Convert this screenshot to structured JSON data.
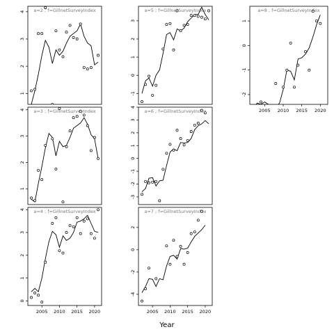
{
  "chart_data": {
    "type": "scatter",
    "xlabel": "Year",
    "xlim": [
      2001,
      2022
    ],
    "xticks": [
      2005,
      2010,
      2015,
      2020
    ],
    "panels": [
      {
        "title": "a=2 ; f=GillnetSurveyIndex",
        "ylim": [
          0.6,
          4.2
        ],
        "yticks": [
          1,
          2,
          3,
          4
        ],
        "points": [
          [
            2002,
            1.1
          ],
          [
            2003,
            1.15
          ],
          [
            2004,
            3.2
          ],
          [
            2005,
            3.2
          ],
          [
            2006,
            4.15
          ],
          [
            2008,
            0.6
          ],
          [
            2009,
            3.3
          ],
          [
            2010,
            2.6
          ],
          [
            2011,
            2.35
          ],
          [
            2012,
            3.25
          ],
          [
            2013,
            3.5
          ],
          [
            2014,
            3.05
          ],
          [
            2015,
            3.0
          ],
          [
            2016,
            3.55
          ],
          [
            2017,
            1.95
          ],
          [
            2018,
            1.9
          ],
          [
            2019,
            1.95
          ],
          [
            2020,
            0.55
          ],
          [
            2021,
            2.4
          ]
        ],
        "fit": [
          [
            2002,
            0.6
          ],
          [
            2003,
            1.1
          ],
          [
            2004,
            1.7
          ],
          [
            2005,
            2.4
          ],
          [
            2006,
            2.95
          ],
          [
            2007,
            2.7
          ],
          [
            2008,
            2.1
          ],
          [
            2009,
            2.6
          ],
          [
            2010,
            2.4
          ],
          [
            2011,
            2.55
          ],
          [
            2012,
            2.85
          ],
          [
            2013,
            3.1
          ],
          [
            2014,
            3.2
          ],
          [
            2015,
            3.3
          ],
          [
            2016,
            3.55
          ],
          [
            2017,
            3.1
          ],
          [
            2018,
            2.85
          ],
          [
            2019,
            2.75
          ],
          [
            2020,
            2.05
          ],
          [
            2021,
            2.15
          ]
        ]
      },
      {
        "title": "a=5 ; f=GillnetSurveyIndex",
        "ylim": [
          -1.6,
          3.8
        ],
        "yticks": [
          -1,
          0,
          1,
          2,
          3
        ],
        "points": [
          [
            2002,
            -1.45
          ],
          [
            2003,
            -0.5
          ],
          [
            2004,
            -0.05
          ],
          [
            2005,
            -1.1
          ],
          [
            2006,
            -0.55
          ],
          [
            2008,
            1.45
          ],
          [
            2009,
            2.8
          ],
          [
            2010,
            2.85
          ],
          [
            2011,
            1.4
          ],
          [
            2012,
            3.55
          ],
          [
            2013,
            2.45
          ],
          [
            2014,
            2.75
          ],
          [
            2015,
            2.8
          ],
          [
            2016,
            3.3
          ],
          [
            2017,
            3.3
          ],
          [
            2018,
            3.25
          ],
          [
            2019,
            3.2
          ],
          [
            2020,
            3.1
          ],
          [
            2021,
            3.55
          ]
        ],
        "fit": [
          [
            2002,
            -1.0
          ],
          [
            2003,
            -0.3
          ],
          [
            2004,
            -0.15
          ],
          [
            2005,
            -0.6
          ],
          [
            2006,
            0.0
          ],
          [
            2007,
            0.3
          ],
          [
            2008,
            1.2
          ],
          [
            2009,
            2.25
          ],
          [
            2010,
            2.35
          ],
          [
            2011,
            1.95
          ],
          [
            2012,
            2.55
          ],
          [
            2013,
            2.45
          ],
          [
            2014,
            2.6
          ],
          [
            2015,
            2.95
          ],
          [
            2016,
            3.15
          ],
          [
            2017,
            3.35
          ],
          [
            2018,
            3.35
          ],
          [
            2019,
            3.75
          ],
          [
            2020,
            3.35
          ],
          [
            2021,
            3.05
          ]
        ]
      },
      {
        "title": "a=8 ; f=GillnetSurveyIndex",
        "ylim": [
          -2.4,
          1.6
        ],
        "yticks": [
          -2,
          -1,
          0,
          1
        ],
        "points": [
          [
            2002,
            -2.55
          ],
          [
            2004,
            -2.3
          ],
          [
            2006,
            -2.5
          ],
          [
            2008,
            -1.55
          ],
          [
            2010,
            -1.7
          ],
          [
            2011,
            -1.0
          ],
          [
            2012,
            0.1
          ],
          [
            2013,
            -1.7
          ],
          [
            2014,
            -0.8
          ],
          [
            2016,
            -0.25
          ],
          [
            2017,
            -1.0
          ],
          [
            2018,
            1.4
          ],
          [
            2019,
            1.0
          ],
          [
            2020,
            0.9
          ]
        ],
        "fit": [
          [
            2002,
            -2.5
          ],
          [
            2003,
            -2.35
          ],
          [
            2004,
            -2.4
          ],
          [
            2005,
            -2.3
          ],
          [
            2006,
            -2.4
          ],
          [
            2007,
            -2.5
          ],
          [
            2008,
            -2.5
          ],
          [
            2009,
            -2.35
          ],
          [
            2010,
            -1.8
          ],
          [
            2011,
            -1.0
          ],
          [
            2012,
            -1.05
          ],
          [
            2013,
            -1.4
          ],
          [
            2014,
            -0.55
          ],
          [
            2015,
            -0.5
          ],
          [
            2016,
            -0.35
          ],
          [
            2017,
            -0.1
          ],
          [
            2018,
            0.35
          ],
          [
            2019,
            0.85
          ],
          [
            2020,
            1.25
          ]
        ]
      },
      {
        "title": "a=3 ; f=GillnetSurveyIndex",
        "ylim": [
          0.4,
          4.1
        ],
        "yticks": [
          1,
          2,
          3,
          4
        ],
        "points": [
          [
            2002,
            0.65
          ],
          [
            2003,
            0.55
          ],
          [
            2004,
            1.7
          ],
          [
            2005,
            1.35
          ],
          [
            2006,
            2.65
          ],
          [
            2008,
            2.9
          ],
          [
            2009,
            1.75
          ],
          [
            2010,
            4.05
          ],
          [
            2011,
            0.5
          ],
          [
            2012,
            2.6
          ],
          [
            2013,
            3.2
          ],
          [
            2014,
            3.7
          ],
          [
            2015,
            3.75
          ],
          [
            2016,
            3.95
          ],
          [
            2017,
            3.8
          ],
          [
            2018,
            3.4
          ],
          [
            2019,
            2.45
          ],
          [
            2020,
            2.95
          ],
          [
            2021,
            2.15
          ]
        ],
        "fit": [
          [
            2002,
            0.6
          ],
          [
            2003,
            0.5
          ],
          [
            2004,
            1.2
          ],
          [
            2005,
            1.85
          ],
          [
            2006,
            2.55
          ],
          [
            2007,
            3.1
          ],
          [
            2008,
            2.95
          ],
          [
            2009,
            2.25
          ],
          [
            2010,
            2.8
          ],
          [
            2011,
            2.6
          ],
          [
            2012,
            2.65
          ],
          [
            2013,
            2.95
          ],
          [
            2014,
            3.3
          ],
          [
            2015,
            3.4
          ],
          [
            2016,
            3.5
          ],
          [
            2017,
            3.7
          ],
          [
            2018,
            3.45
          ],
          [
            2019,
            3.05
          ],
          [
            2020,
            2.9
          ],
          [
            2021,
            2.15
          ]
        ]
      },
      {
        "title": "a=6 ; f=GillnetSurveyIndex",
        "ylim": [
          -3.6,
          4.0
        ],
        "yticks": [
          -3,
          -2,
          -1,
          0,
          1,
          2,
          3,
          4
        ],
        "points": [
          [
            2002,
            -2.8
          ],
          [
            2003,
            -1.8
          ],
          [
            2004,
            -1.9
          ],
          [
            2005,
            -1.85
          ],
          [
            2006,
            -1.8
          ],
          [
            2007,
            -3.3
          ],
          [
            2008,
            -0.85
          ],
          [
            2009,
            0.4
          ],
          [
            2010,
            1.1
          ],
          [
            2011,
            0.65
          ],
          [
            2012,
            2.2
          ],
          [
            2013,
            1.55
          ],
          [
            2014,
            1.05
          ],
          [
            2015,
            1.4
          ],
          [
            2016,
            2.1
          ],
          [
            2017,
            2.6
          ],
          [
            2018,
            2.75
          ],
          [
            2019,
            3.75
          ],
          [
            2020,
            3.55
          ]
        ],
        "fit": [
          [
            2002,
            -2.6
          ],
          [
            2003,
            -2.35
          ],
          [
            2004,
            -1.55
          ],
          [
            2005,
            -1.5
          ],
          [
            2006,
            -2.15
          ],
          [
            2007,
            -1.75
          ],
          [
            2008,
            -1.7
          ],
          [
            2009,
            -0.55
          ],
          [
            2010,
            0.5
          ],
          [
            2011,
            0.75
          ],
          [
            2012,
            0.6
          ],
          [
            2013,
            1.25
          ],
          [
            2014,
            1.2
          ],
          [
            2015,
            1.25
          ],
          [
            2016,
            1.55
          ],
          [
            2017,
            2.25
          ],
          [
            2018,
            2.55
          ],
          [
            2019,
            2.7
          ],
          [
            2020,
            2.95
          ],
          [
            2021,
            2.7
          ]
        ]
      },
      {
        "title": "a=4 ; f=GillnetSurveyIndex",
        "ylim": [
          -0.2,
          4.1
        ],
        "yticks": [
          0,
          1,
          2,
          3,
          4
        ],
        "points": [
          [
            2002,
            0.15
          ],
          [
            2003,
            0.35
          ],
          [
            2004,
            0.25
          ],
          [
            2005,
            -0.05
          ],
          [
            2006,
            1.7
          ],
          [
            2008,
            3.4
          ],
          [
            2009,
            3.65
          ],
          [
            2010,
            2.2
          ],
          [
            2011,
            2.1
          ],
          [
            2012,
            3.0
          ],
          [
            2013,
            3.3
          ],
          [
            2014,
            3.25
          ],
          [
            2015,
            3.65
          ],
          [
            2016,
            2.95
          ],
          [
            2017,
            3.5
          ],
          [
            2018,
            3.6
          ],
          [
            2019,
            2.95
          ],
          [
            2020,
            2.75
          ],
          [
            2021,
            4.0
          ]
        ],
        "fit": [
          [
            2002,
            0.4
          ],
          [
            2003,
            0.55
          ],
          [
            2004,
            0.4
          ],
          [
            2005,
            1.0
          ],
          [
            2006,
            1.85
          ],
          [
            2007,
            2.6
          ],
          [
            2008,
            3.05
          ],
          [
            2009,
            2.9
          ],
          [
            2010,
            2.35
          ],
          [
            2011,
            2.85
          ],
          [
            2012,
            2.65
          ],
          [
            2013,
            2.75
          ],
          [
            2014,
            3.0
          ],
          [
            2015,
            3.45
          ],
          [
            2016,
            3.5
          ],
          [
            2017,
            3.6
          ],
          [
            2018,
            3.75
          ],
          [
            2019,
            3.4
          ],
          [
            2020,
            3.05
          ],
          [
            2021,
            3.0
          ]
        ]
      },
      {
        "title": "a=7 ; f=GillnetSurveyIndex",
        "ylim": [
          -5.0,
          3.8
        ],
        "yticks": [
          -4,
          -2,
          0,
          2
        ],
        "points": [
          [
            2002,
            -4.6
          ],
          [
            2003,
            -3.5
          ],
          [
            2004,
            -1.65
          ],
          [
            2006,
            -2.6
          ],
          [
            2009,
            0.35
          ],
          [
            2010,
            -1.3
          ],
          [
            2011,
            0.85
          ],
          [
            2012,
            -0.6
          ],
          [
            2013,
            0.3
          ],
          [
            2014,
            -1.3
          ],
          [
            2015,
            -0.25
          ],
          [
            2016,
            1.45
          ],
          [
            2017,
            1.6
          ],
          [
            2018,
            2.65
          ],
          [
            2019,
            3.45
          ]
        ],
        "fit": [
          [
            2002,
            -3.85
          ],
          [
            2003,
            -3.3
          ],
          [
            2004,
            -2.6
          ],
          [
            2005,
            -2.65
          ],
          [
            2006,
            -3.3
          ],
          [
            2007,
            -2.6
          ],
          [
            2008,
            -2.7
          ],
          [
            2009,
            -1.45
          ],
          [
            2010,
            -0.6
          ],
          [
            2011,
            -0.5
          ],
          [
            2012,
            -0.85
          ],
          [
            2013,
            0.1
          ],
          [
            2014,
            0.05
          ],
          [
            2015,
            0.15
          ],
          [
            2016,
            0.7
          ],
          [
            2017,
            1.2
          ],
          [
            2018,
            1.5
          ],
          [
            2019,
            1.8
          ],
          [
            2020,
            2.2
          ]
        ]
      }
    ]
  }
}
